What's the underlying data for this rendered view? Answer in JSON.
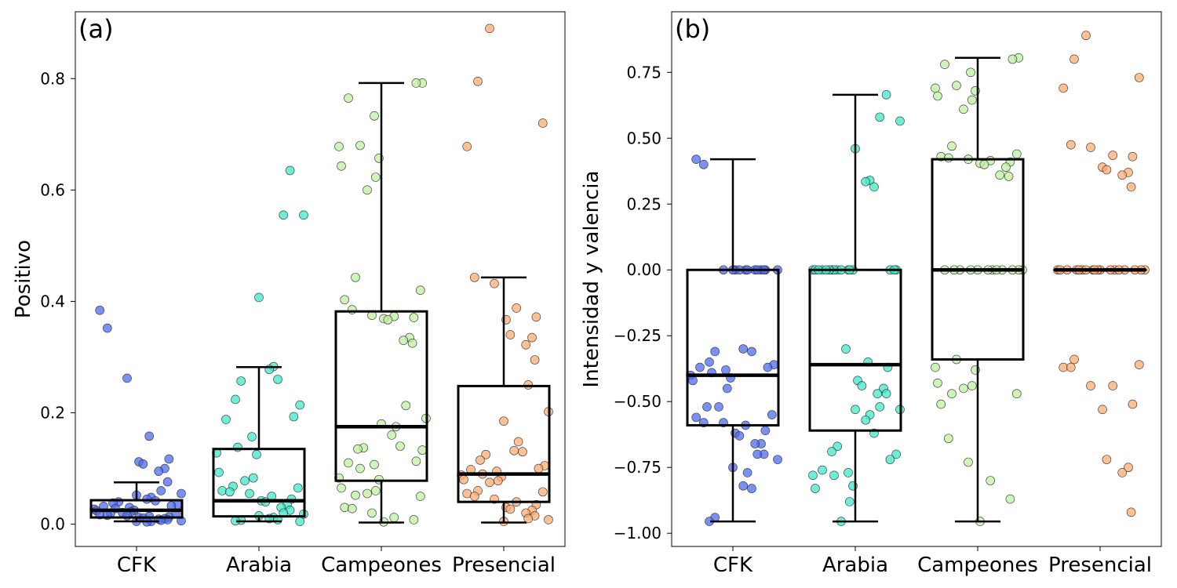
{
  "chart_data": [
    {
      "type": "box-strip",
      "panel_label": "(a)",
      "ylabel": "Positivo",
      "ylim": [
        -0.04,
        0.92
      ],
      "yticks": [
        0.0,
        0.2,
        0.4,
        0.6,
        0.8
      ],
      "ytick_labels": [
        "0.0",
        "0.2",
        "0.4",
        "0.6",
        "0.8"
      ],
      "categories": [
        "CFK",
        "Arabia",
        "Campeones",
        "Presencial"
      ],
      "colors": [
        "#4d6bf2",
        "#3ee8c8",
        "#bdf0a0",
        "#ffab70"
      ],
      "boxes": [
        {
          "whisker_low": 0.005,
          "q1": 0.012,
          "median": 0.025,
          "q3": 0.043,
          "whisker_high": 0.075
        },
        {
          "whisker_low": 0.005,
          "q1": 0.014,
          "median": 0.042,
          "q3": 0.135,
          "whisker_high": 0.282
        },
        {
          "whisker_low": 0.003,
          "q1": 0.078,
          "median": 0.175,
          "q3": 0.382,
          "whisker_high": 0.792
        },
        {
          "whisker_low": 0.003,
          "q1": 0.04,
          "median": 0.09,
          "q3": 0.248,
          "whisker_high": 0.443
        }
      ],
      "points": [
        [
          0.384,
          0.352,
          0.262,
          0.158,
          0.117,
          0.112,
          0.108,
          0.1,
          0.095,
          0.076,
          0.06,
          0.055,
          0.052,
          0.048,
          0.045,
          0.042,
          0.04,
          0.038,
          0.035,
          0.033,
          0.032,
          0.03,
          0.028,
          0.027,
          0.025,
          0.024,
          0.022,
          0.021,
          0.02,
          0.018,
          0.017,
          0.016,
          0.015,
          0.014,
          0.013,
          0.012,
          0.011,
          0.01,
          0.009,
          0.008,
          0.007,
          0.006,
          0.005,
          0.005,
          0.004
        ],
        [
          0.635,
          0.555,
          0.555,
          0.407,
          0.283,
          0.278,
          0.26,
          0.257,
          0.224,
          0.214,
          0.193,
          0.188,
          0.157,
          0.138,
          0.128,
          0.125,
          0.093,
          0.083,
          0.078,
          0.068,
          0.065,
          0.06,
          0.058,
          0.055,
          0.05,
          0.045,
          0.042,
          0.04,
          0.035,
          0.03,
          0.025,
          0.02,
          0.018,
          0.015,
          0.012,
          0.01,
          0.008,
          0.007,
          0.006,
          0.005
        ],
        [
          0.792,
          0.792,
          0.765,
          0.733,
          0.68,
          0.678,
          0.657,
          0.643,
          0.623,
          0.6,
          0.443,
          0.42,
          0.403,
          0.385,
          0.375,
          0.373,
          0.371,
          0.369,
          0.367,
          0.335,
          0.33,
          0.325,
          0.213,
          0.19,
          0.18,
          0.175,
          0.16,
          0.14,
          0.137,
          0.135,
          0.133,
          0.113,
          0.11,
          0.107,
          0.1,
          0.083,
          0.08,
          0.065,
          0.06,
          0.055,
          0.052,
          0.05,
          0.03,
          0.028,
          0.02,
          0.012,
          0.008,
          0.004
        ],
        [
          0.89,
          0.795,
          0.72,
          0.678,
          0.443,
          0.432,
          0.388,
          0.372,
          0.367,
          0.34,
          0.335,
          0.322,
          0.295,
          0.25,
          0.202,
          0.185,
          0.148,
          0.132,
          0.13,
          0.125,
          0.115,
          0.105,
          0.1,
          0.098,
          0.095,
          0.09,
          0.088,
          0.085,
          0.08,
          0.078,
          0.075,
          0.06,
          0.058,
          0.055,
          0.05,
          0.045,
          0.04,
          0.035,
          0.03,
          0.027,
          0.025,
          0.02,
          0.015,
          0.01,
          0.008,
          0.005
        ]
      ]
    },
    {
      "type": "box-strip",
      "panel_label": "(b)",
      "ylabel": "Intensidad y valencia",
      "ylim": [
        -1.05,
        0.98
      ],
      "yticks": [
        -1.0,
        -0.75,
        -0.5,
        -0.25,
        0.0,
        0.25,
        0.5,
        0.75
      ],
      "ytick_labels": [
        "−1.00",
        "−0.75",
        "−0.50",
        "−0.25",
        "0.00",
        "0.25",
        "0.50",
        "0.75"
      ],
      "categories": [
        "CFK",
        "Arabia",
        "Campeones",
        "Presencial"
      ],
      "colors": [
        "#4d6bf2",
        "#3ee8c8",
        "#bdf0a0",
        "#ffab70"
      ],
      "boxes": [
        {
          "whisker_low": -0.955,
          "q1": -0.59,
          "median": -0.4,
          "q3": 0.0,
          "whisker_high": 0.42
        },
        {
          "whisker_low": -0.955,
          "q1": -0.61,
          "median": -0.36,
          "q3": 0.0,
          "whisker_high": 0.665
        },
        {
          "whisker_low": -0.955,
          "q1": -0.34,
          "median": 0.0,
          "q3": 0.42,
          "whisker_high": 0.805
        },
        {
          "whisker_low": 0.0,
          "q1": 0.0,
          "median": 0.0,
          "q3": 0.0,
          "whisker_high": 0.0
        }
      ],
      "points": [
        [
          0.42,
          0.4,
          0.0,
          0.0,
          0.0,
          0.0,
          0.0,
          0.0,
          0.0,
          0.0,
          0.0,
          0.0,
          0.0,
          0.0,
          -0.3,
          -0.31,
          -0.31,
          -0.35,
          -0.36,
          -0.37,
          -0.37,
          -0.38,
          -0.39,
          -0.4,
          -0.41,
          -0.42,
          -0.45,
          -0.52,
          -0.52,
          -0.55,
          -0.56,
          -0.58,
          -0.58,
          -0.59,
          -0.61,
          -0.62,
          -0.63,
          -0.66,
          -0.66,
          -0.7,
          -0.7,
          -0.72,
          -0.75,
          -0.77,
          -0.82,
          -0.83,
          -0.94,
          -0.955
        ],
        [
          0.665,
          0.58,
          0.565,
          0.46,
          0.34,
          0.335,
          0.315,
          0.0,
          0.0,
          0.0,
          0.0,
          0.0,
          0.0,
          0.0,
          0.0,
          0.0,
          0.0,
          0.0,
          0.0,
          0.0,
          0.0,
          0.0,
          0.0,
          -0.3,
          -0.35,
          -0.37,
          -0.42,
          -0.44,
          -0.45,
          -0.47,
          -0.47,
          -0.52,
          -0.53,
          -0.53,
          -0.55,
          -0.57,
          -0.62,
          -0.67,
          -0.69,
          -0.7,
          -0.72,
          -0.76,
          -0.77,
          -0.78,
          -0.78,
          -0.82,
          -0.83,
          -0.88,
          -0.955
        ],
        [
          0.805,
          0.8,
          0.78,
          0.75,
          0.7,
          0.69,
          0.68,
          0.66,
          0.645,
          0.61,
          0.47,
          0.44,
          0.43,
          0.425,
          0.42,
          0.415,
          0.41,
          0.405,
          0.4,
          0.39,
          0.36,
          0.355,
          0.0,
          0.0,
          0.0,
          0.0,
          0.0,
          0.0,
          0.0,
          0.0,
          0.0,
          0.0,
          0.0,
          0.0,
          -0.34,
          -0.37,
          -0.38,
          -0.43,
          -0.44,
          -0.45,
          -0.47,
          -0.47,
          -0.51,
          -0.64,
          -0.73,
          -0.8,
          -0.87,
          -0.955
        ],
        [
          0.89,
          0.8,
          0.73,
          0.69,
          0.475,
          0.465,
          0.435,
          0.43,
          0.39,
          0.38,
          0.37,
          0.36,
          0.315,
          0.0,
          0.0,
          0.0,
          0.0,
          0.0,
          0.0,
          0.0,
          0.0,
          0.0,
          0.0,
          0.0,
          0.0,
          0.0,
          0.0,
          0.0,
          0.0,
          0.0,
          0.0,
          -0.34,
          -0.36,
          -0.37,
          -0.37,
          -0.44,
          -0.44,
          -0.51,
          -0.53,
          -0.72,
          -0.75,
          -0.77,
          -0.92
        ]
      ]
    }
  ]
}
